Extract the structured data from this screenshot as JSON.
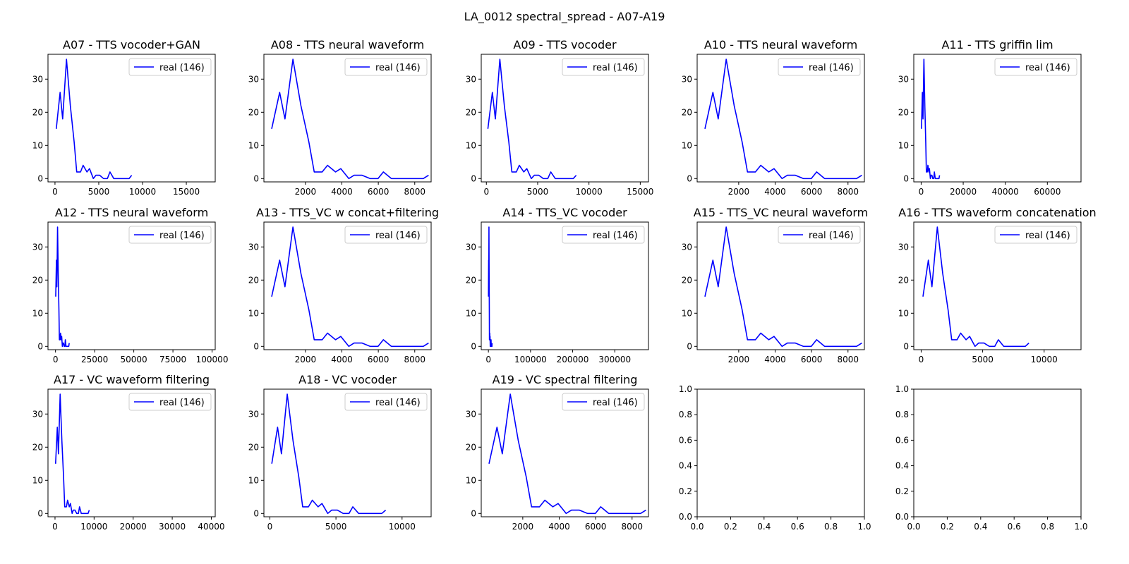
{
  "figure_title": "LA_0012 spectral_spread - A07-A19",
  "colors": {
    "line": "#0000ff",
    "axes": "#000000",
    "legend_border": "#cccccc"
  },
  "series_x": [
    146,
    584,
    876,
    1314,
    1752,
    2190,
    2482,
    2920,
    3212,
    3650,
    3942,
    4380,
    4672,
    5110,
    5548,
    5986,
    6278,
    6716,
    7154,
    7592,
    8030,
    8468,
    8760
  ],
  "series_y": [
    15,
    26,
    18,
    36,
    22,
    11,
    2,
    2,
    4,
    2,
    3,
    0,
    1,
    1,
    0,
    0,
    2,
    0,
    0,
    0,
    0,
    0,
    1
  ],
  "chart_data": [
    {
      "type": "line",
      "title": "A07 - TTS vocoder+GAN",
      "xlim": [
        -800,
        18300
      ],
      "ylim": [
        -1,
        37.5
      ],
      "xticks": [
        0,
        5000,
        10000,
        15000
      ],
      "xtick_labels": [
        "0",
        "5000",
        "10000",
        "15000"
      ],
      "yticks": [
        0,
        10,
        20,
        30
      ],
      "ytick_labels": [
        "0",
        "10",
        "20",
        "30"
      ],
      "legend": "upper right",
      "series": [
        {
          "name": "real (146)"
        }
      ]
    },
    {
      "type": "line",
      "title": "A08 - TTS neural waveform",
      "xlim": [
        -280,
        8900
      ],
      "ylim": [
        -1,
        37.5
      ],
      "xticks": [
        2000,
        4000,
        6000,
        8000
      ],
      "xtick_labels": [
        "2000",
        "4000",
        "6000",
        "8000"
      ],
      "yticks": [
        0,
        10,
        20,
        30
      ],
      "ytick_labels": [
        "0",
        "10",
        "20",
        "30"
      ],
      "legend": "upper right",
      "series": [
        {
          "name": "real (146)"
        }
      ]
    },
    {
      "type": "line",
      "title": "A09 - TTS vocoder",
      "xlim": [
        -500,
        15800
      ],
      "ylim": [
        -1,
        37.5
      ],
      "xticks": [
        0,
        5000,
        10000,
        15000
      ],
      "xtick_labels": [
        "0",
        "5000",
        "10000",
        "15000"
      ],
      "yticks": [
        0,
        10,
        20,
        30
      ],
      "ytick_labels": [
        "0",
        "10",
        "20",
        "30"
      ],
      "legend": "upper right",
      "series": [
        {
          "name": "real (146)"
        }
      ]
    },
    {
      "type": "line",
      "title": "A10 - TTS neural waveform",
      "xlim": [
        -280,
        8900
      ],
      "ylim": [
        -1,
        37.5
      ],
      "xticks": [
        2000,
        4000,
        6000,
        8000
      ],
      "xtick_labels": [
        "2000",
        "4000",
        "6000",
        "8000"
      ],
      "yticks": [
        0,
        10,
        20,
        30
      ],
      "ytick_labels": [
        "0",
        "10",
        "20",
        "30"
      ],
      "legend": "upper right",
      "series": [
        {
          "name": "real (146)"
        }
      ]
    },
    {
      "type": "line",
      "title": "A11 - TTS griffin lim",
      "xlim": [
        -3500,
        76000
      ],
      "ylim": [
        -1,
        37.5
      ],
      "xticks": [
        0,
        20000,
        40000,
        60000
      ],
      "xtick_labels": [
        "0",
        "20000",
        "40000",
        "60000"
      ],
      "yticks": [
        0,
        10,
        20,
        30
      ],
      "ytick_labels": [
        "0",
        "10",
        "20",
        "30"
      ],
      "legend": "upper right",
      "series": [
        {
          "name": "real (146)"
        }
      ]
    },
    {
      "type": "line",
      "title": "A12 - TTS neural waveform",
      "xlim": [
        -4800,
        102000
      ],
      "ylim": [
        -1,
        37.5
      ],
      "xticks": [
        0,
        25000,
        50000,
        75000,
        100000
      ],
      "xtick_labels": [
        "0",
        "25000",
        "50000",
        "75000",
        "100000"
      ],
      "yticks": [
        0,
        10,
        20,
        30
      ],
      "ytick_labels": [
        "0",
        "10",
        "20",
        "30"
      ],
      "legend": "upper right",
      "series": [
        {
          "name": "real (146)"
        }
      ]
    },
    {
      "type": "line",
      "title": "A13 - TTS_VC w concat+filtering",
      "xlim": [
        -280,
        8900
      ],
      "ylim": [
        -1,
        37.5
      ],
      "xticks": [
        2000,
        4000,
        6000,
        8000
      ],
      "xtick_labels": [
        "2000",
        "4000",
        "6000",
        "8000"
      ],
      "yticks": [
        0,
        10,
        20,
        30
      ],
      "ytick_labels": [
        "0",
        "10",
        "20",
        "30"
      ],
      "legend": "upper right",
      "series": [
        {
          "name": "real (146)"
        }
      ]
    },
    {
      "type": "line",
      "title": "A14 - TTS_VC vocoder",
      "xlim": [
        -17000,
        380000
      ],
      "ylim": [
        -1,
        37.5
      ],
      "xticks": [
        0,
        100000,
        200000,
        300000
      ],
      "xtick_labels": [
        "0",
        "100000",
        "200000",
        "300000"
      ],
      "yticks": [
        0,
        10,
        20,
        30
      ],
      "ytick_labels": [
        "0",
        "10",
        "20",
        "30"
      ],
      "legend": "upper right",
      "series": [
        {
          "name": "real (146)"
        }
      ]
    },
    {
      "type": "line",
      "title": "A15 - TTS_VC neural waveform",
      "xlim": [
        -280,
        8900
      ],
      "ylim": [
        -1,
        37.5
      ],
      "xticks": [
        2000,
        4000,
        6000,
        8000
      ],
      "xtick_labels": [
        "2000",
        "4000",
        "6000",
        "8000"
      ],
      "yticks": [
        0,
        10,
        20,
        30
      ],
      "ytick_labels": [
        "0",
        "10",
        "20",
        "30"
      ],
      "legend": "upper right",
      "series": [
        {
          "name": "real (146)"
        }
      ]
    },
    {
      "type": "line",
      "title": "A16 - TTS waveform concatenation",
      "xlim": [
        -600,
        13000
      ],
      "ylim": [
        -1,
        37.5
      ],
      "xticks": [
        0,
        5000,
        10000
      ],
      "xtick_labels": [
        "0",
        "5000",
        "10000"
      ],
      "yticks": [
        0,
        10,
        20,
        30
      ],
      "ytick_labels": [
        "0",
        "10",
        "20",
        "30"
      ],
      "legend": "upper right",
      "series": [
        {
          "name": "real (146)"
        }
      ]
    },
    {
      "type": "line",
      "title": "A17 - VC waveform filtering",
      "xlim": [
        -1800,
        41000
      ],
      "ylim": [
        -1,
        37.5
      ],
      "xticks": [
        0,
        10000,
        20000,
        30000,
        40000
      ],
      "xtick_labels": [
        "0",
        "10000",
        "20000",
        "30000",
        "40000"
      ],
      "yticks": [
        0,
        10,
        20,
        30
      ],
      "ytick_labels": [
        "0",
        "10",
        "20",
        "30"
      ],
      "legend": "upper right",
      "series": [
        {
          "name": "real (146)"
        }
      ]
    },
    {
      "type": "line",
      "title": "A18 - VC vocoder",
      "xlim": [
        -450,
        12200
      ],
      "ylim": [
        -1,
        37.5
      ],
      "xticks": [
        0,
        5000,
        10000
      ],
      "xtick_labels": [
        "0",
        "5000",
        "10000"
      ],
      "yticks": [
        0,
        10,
        20,
        30
      ],
      "ytick_labels": [
        "0",
        "10",
        "20",
        "30"
      ],
      "legend": "upper right",
      "series": [
        {
          "name": "real (146)"
        }
      ]
    },
    {
      "type": "line",
      "title": "A19 - VC spectral filtering",
      "xlim": [
        -280,
        8900
      ],
      "ylim": [
        -1,
        37.5
      ],
      "xticks": [
        2000,
        4000,
        6000,
        8000
      ],
      "xtick_labels": [
        "2000",
        "4000",
        "6000",
        "8000"
      ],
      "yticks": [
        0,
        10,
        20,
        30
      ],
      "ytick_labels": [
        "0",
        "10",
        "20",
        "30"
      ],
      "legend": "upper right",
      "series": [
        {
          "name": "real (146)"
        }
      ]
    },
    {
      "type": "line",
      "title": "",
      "xlim": [
        0,
        1
      ],
      "ylim": [
        0,
        1
      ],
      "xticks": [
        0,
        0.2,
        0.4,
        0.6,
        0.8,
        1.0
      ],
      "xtick_labels": [
        "0.0",
        "0.2",
        "0.4",
        "0.6",
        "0.8",
        "1.0"
      ],
      "yticks": [
        0,
        0.2,
        0.4,
        0.6,
        0.8,
        1.0
      ],
      "ytick_labels": [
        "0.0",
        "0.2",
        "0.4",
        "0.6",
        "0.8",
        "1.0"
      ],
      "legend": null,
      "series": []
    },
    {
      "type": "line",
      "title": "",
      "xlim": [
        0,
        1
      ],
      "ylim": [
        0,
        1
      ],
      "xticks": [
        0,
        0.2,
        0.4,
        0.6,
        0.8,
        1.0
      ],
      "xtick_labels": [
        "0.0",
        "0.2",
        "0.4",
        "0.6",
        "0.8",
        "1.0"
      ],
      "yticks": [
        0,
        0.2,
        0.4,
        0.6,
        0.8,
        1.0
      ],
      "ytick_labels": [
        "0.0",
        "0.2",
        "0.4",
        "0.6",
        "0.8",
        "1.0"
      ],
      "legend": null,
      "series": []
    }
  ]
}
